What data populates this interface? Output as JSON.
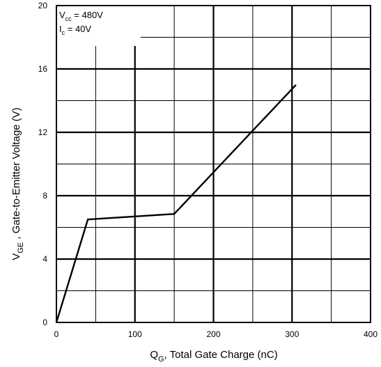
{
  "chart_data": {
    "type": "line",
    "title": "",
    "xlabel": {
      "main": "Q",
      "sub": "G",
      "rest": ", Total Gate Charge (nC)"
    },
    "ylabel": {
      "main": "V",
      "sub": "GE",
      "rest": " , Gate-to-Emitter Voltage (V)"
    },
    "xlim": [
      0,
      400
    ],
    "ylim": [
      0,
      20
    ],
    "xticks": [
      0,
      100,
      200,
      300,
      400
    ],
    "yticks": [
      0,
      4,
      8,
      12,
      16,
      20
    ],
    "grid": true,
    "series": [
      {
        "x": [
          0,
          40,
          150,
          305
        ],
        "y": [
          0,
          6.5,
          6.85,
          15.0
        ],
        "color": "#000000"
      }
    ],
    "annotations": {
      "vcc": {
        "main": "V",
        "sub": "cc",
        "rest": " = 480V"
      },
      "ic": {
        "main": "I",
        "sub": "c",
        "rest": " = 40V"
      }
    }
  }
}
